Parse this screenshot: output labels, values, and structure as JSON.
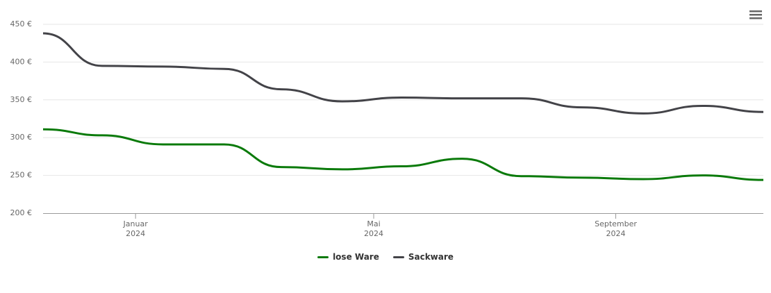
{
  "chart_data": {
    "type": "line",
    "x": [
      "2023-11",
      "2023-12",
      "2024-01",
      "2024-02",
      "2024-03",
      "2024-04",
      "2024-05",
      "2024-06",
      "2024-07",
      "2024-08",
      "2024-09",
      "2024-10",
      "2024-11"
    ],
    "series": [
      {
        "name": "lose Ware",
        "color": "#0a7a0a",
        "values": [
          311,
          303,
          291,
          291,
          261,
          258,
          262,
          272,
          249,
          247,
          245,
          250,
          244
        ]
      },
      {
        "name": "Sackware",
        "color": "#434348",
        "values": [
          438,
          395,
          394,
          391,
          364,
          348,
          353,
          352,
          352,
          340,
          332,
          342,
          334
        ]
      }
    ],
    "xlim": [
      "2023-11",
      "2024-11"
    ],
    "xticks": [
      {
        "value": "2024-01",
        "label": "Januar\n2024"
      },
      {
        "value": "2024-05",
        "label": "Mai\n2024"
      },
      {
        "value": "2024-09",
        "label": "September\n2024"
      }
    ],
    "ylim": [
      200,
      450
    ],
    "yticks": [
      {
        "value": 200,
        "label": "200 €"
      },
      {
        "value": 250,
        "label": "250 €"
      },
      {
        "value": 300,
        "label": "300 €"
      },
      {
        "value": 350,
        "label": "350 €"
      },
      {
        "value": 400,
        "label": "400 €"
      },
      {
        "value": 450,
        "label": "450 €"
      }
    ],
    "grid": true,
    "legend": "bottom"
  }
}
